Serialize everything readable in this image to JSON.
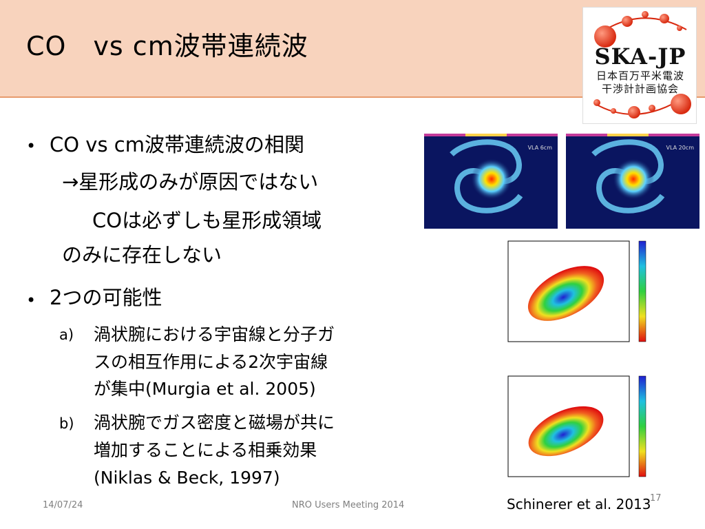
{
  "header": {
    "title": "CO　vs cm波帯連続波"
  },
  "logo": {
    "main": "SKA-JP",
    "line1": "日本百万平米電波",
    "line2": "干渉計計画協会"
  },
  "body": {
    "bullet1": "CO vs cm波帯連続波の相関",
    "line2": "→星形成のみが原因ではない",
    "line3": "COは必ずしも星形成領域",
    "line4": "のみに存在しない",
    "bullet2": "2つの可能性",
    "a_label": "a)",
    "a_line1": "渦状腕における宇宙線と分子ガ",
    "a_line2": "スの相互作用による2次宇宙線",
    "a_line3": "が集中(Murgia et al. 2005)",
    "b_label": "b)",
    "b_line1": "渦状腕でガス密度と磁場が共に",
    "b_line2": "増加することによる相乗効果",
    "b_line3": "(Niklas & Beck, 1997)"
  },
  "figures": {
    "galaxy_left_label": "VLA 6cm",
    "galaxy_right_label": "VLA 20cm",
    "credit": "Schinerer et al. 2013"
  },
  "footer": {
    "date": "14/07/24",
    "event": "NRO Users Meeting 2014",
    "page": "17"
  },
  "colors": {
    "header_bg": "#f8d3bd",
    "header_border": "#e79a6c",
    "logo_red": "#e63b1f"
  }
}
